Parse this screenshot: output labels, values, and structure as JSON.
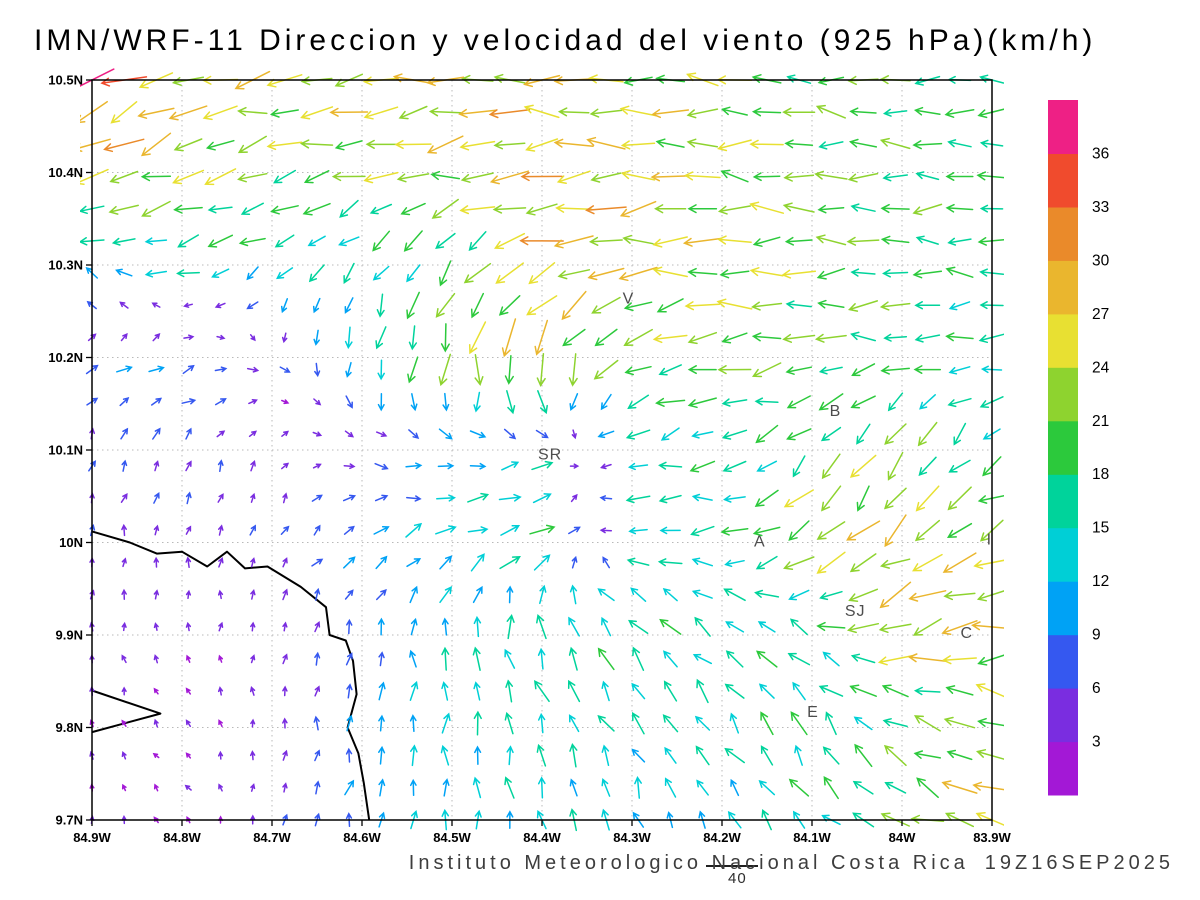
{
  "title": "IMN/WRF-11 Direccion y velocidad del viento (925 hPa)(km/h)",
  "footer": {
    "credit": "Instituto Meteorologico Nacional Costa Rica",
    "datetime": "19Z16SEP2025"
  },
  "reference_vector": {
    "speed_kmh": 40,
    "label": "40"
  },
  "chart_data": {
    "type": "vector_field",
    "title": "IMN/WRF-11 Direccion y velocidad del viento (925 hPa)(km/h)",
    "units": "km/h",
    "pressure_level": "925 hPa",
    "projection": {
      "lon_min": -84.9,
      "lon_max": -83.9,
      "lat_min": 9.7,
      "lat_max": 10.5
    },
    "x_axis": {
      "tick_labels": [
        "84.9W",
        "84.8W",
        "84.7W",
        "84.6W",
        "84.5W",
        "84.4W",
        "84.3W",
        "84.2W",
        "84.1W",
        "84W",
        "83.9W"
      ],
      "tick_lons": [
        -84.9,
        -84.8,
        -84.7,
        -84.6,
        -84.5,
        -84.4,
        -84.3,
        -84.2,
        -84.1,
        -84.0,
        -83.9
      ]
    },
    "y_axis": {
      "tick_labels": [
        "10.5N",
        "10.4N",
        "10.3N",
        "10.2N",
        "10.1N",
        "10N",
        "9.9N",
        "9.8N",
        "9.7N"
      ],
      "tick_lats": [
        10.5,
        10.4,
        10.3,
        10.2,
        10.1,
        10.0,
        9.9,
        9.8,
        9.7
      ]
    },
    "grid_on": true,
    "colorbar": {
      "position": "right",
      "levels": [
        3,
        6,
        9,
        12,
        15,
        18,
        21,
        24,
        27,
        30,
        33,
        36
      ],
      "colors": [
        "#a318d6",
        "#7a2de0",
        "#3558f0",
        "#00a2f5",
        "#00cfd6",
        "#00d39b",
        "#2cc93c",
        "#8ed32f",
        "#e8e032",
        "#eab62e",
        "#ea8a2a",
        "#f04b2d",
        "#ee2085"
      ]
    },
    "wind_grid": {
      "comment": "Estimated wind components in km/h on a 0.1 deg grid; rows north-to-south, cols west-to-east; u eastward, v northward",
      "lons": [
        -84.9,
        -84.8,
        -84.7,
        -84.6,
        -84.5,
        -84.4,
        -84.3,
        -84.2,
        -84.1,
        -84.0,
        -83.9
      ],
      "lats": [
        10.5,
        10.4,
        10.3,
        10.2,
        10.1,
        10.0,
        9.9,
        9.8,
        9.7
      ],
      "u": [
        [
          -30,
          -26,
          -24,
          -25,
          -26,
          -26,
          -24,
          -22,
          -20,
          -19,
          -18
        ],
        [
          -24,
          -22,
          -20,
          -22,
          -25,
          -27,
          -26,
          -23,
          -21,
          -19,
          -18
        ],
        [
          -12,
          -16,
          -12,
          -8,
          -10,
          -28,
          -26,
          -24,
          -21,
          -19,
          -17
        ],
        [
          8,
          10,
          5,
          -2,
          -6,
          -4,
          -18,
          -22,
          -20,
          -18,
          -16
        ],
        [
          2,
          3,
          2,
          6,
          10,
          12,
          -14,
          -16,
          -12,
          -10,
          -12
        ],
        [
          1,
          1,
          2,
          8,
          14,
          16,
          -14,
          -16,
          -20,
          -20,
          -22
        ],
        [
          0,
          -1,
          1,
          2,
          -2,
          -6,
          -10,
          -12,
          -14,
          -27,
          -26
        ],
        [
          -1,
          -2,
          0,
          2,
          0,
          -4,
          -8,
          -10,
          -8,
          -16,
          -20
        ],
        [
          0,
          -2,
          2,
          2,
          0,
          -2,
          -4,
          -6,
          -10,
          -18,
          -28
        ]
      ],
      "v": [
        [
          -15,
          -8,
          -5,
          -3,
          -2,
          0,
          2,
          2,
          1,
          0,
          0
        ],
        [
          -10,
          -8,
          -6,
          -4,
          -4,
          -3,
          0,
          1,
          1,
          1,
          1
        ],
        [
          5,
          -3,
          -8,
          -12,
          -16,
          -8,
          -4,
          0,
          0,
          0,
          0
        ],
        [
          4,
          3,
          -3,
          -14,
          -24,
          -30,
          -10,
          -2,
          -2,
          -2,
          -1
        ],
        [
          6,
          6,
          4,
          -2,
          -2,
          2,
          -4,
          -4,
          -14,
          -20,
          -10
        ],
        [
          5,
          5,
          5,
          6,
          6,
          8,
          0,
          0,
          -18,
          -16,
          -10
        ],
        [
          4,
          3,
          4,
          8,
          14,
          16,
          14,
          10,
          8,
          -8,
          -2
        ],
        [
          3,
          2,
          4,
          10,
          14,
          14,
          12,
          12,
          16,
          10,
          6
        ],
        [
          3,
          2,
          4,
          10,
          12,
          14,
          12,
          10,
          12,
          8,
          6
        ]
      ]
    },
    "cities": [
      {
        "label": "V",
        "lon": -84.304,
        "lat": 10.264
      },
      {
        "label": "B",
        "lon": -84.074,
        "lat": 10.142
      },
      {
        "label": "SR",
        "lon": -84.391,
        "lat": 10.095
      },
      {
        "label": "A",
        "lon": -84.158,
        "lat": 10.001
      },
      {
        "label": "I",
        "lon": -83.903,
        "lat": 10.003
      },
      {
        "label": "SJ",
        "lon": -84.052,
        "lat": 9.926
      },
      {
        "label": "C",
        "lon": -83.928,
        "lat": 9.902
      },
      {
        "label": "E",
        "lon": -84.099,
        "lat": 9.817
      }
    ],
    "coastline": [
      [
        [
          -84.9,
          10.012
        ],
        [
          -84.858,
          10.0
        ],
        [
          -84.828,
          9.988
        ],
        [
          -84.8,
          9.99
        ],
        [
          -84.772,
          9.974
        ],
        [
          -84.75,
          9.99
        ],
        [
          -84.73,
          9.972
        ],
        [
          -84.705,
          9.974
        ],
        [
          -84.668,
          9.952
        ],
        [
          -84.64,
          9.93
        ],
        [
          -84.636,
          9.9
        ],
        [
          -84.618,
          9.894
        ],
        [
          -84.61,
          9.872
        ],
        [
          -84.606,
          9.836
        ],
        [
          -84.616,
          9.8
        ],
        [
          -84.604,
          9.772
        ],
        [
          -84.598,
          9.74
        ],
        [
          -84.592,
          9.7
        ]
      ],
      [
        [
          -84.9,
          9.84
        ],
        [
          -84.824,
          9.815
        ],
        [
          -84.9,
          9.795
        ]
      ]
    ]
  }
}
